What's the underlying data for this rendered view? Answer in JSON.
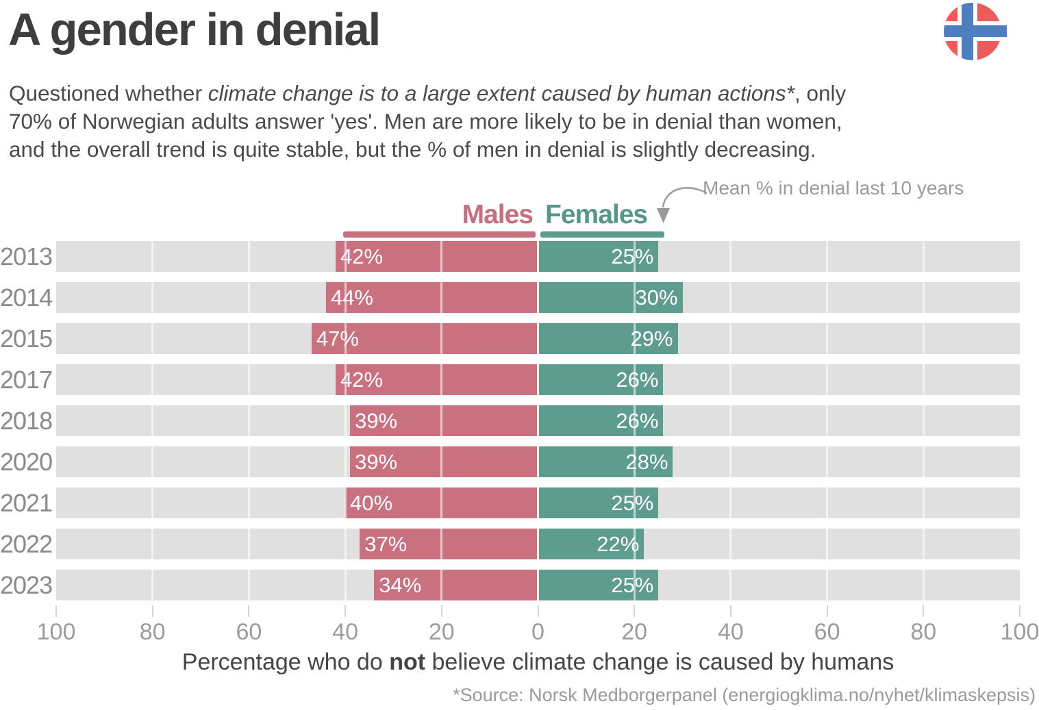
{
  "title": "A gender in denial",
  "flag": {
    "icon": "norway-flag-icon",
    "red": "#ee5b5b",
    "blue": "#4d7fc0",
    "white": "#ffffff"
  },
  "intro": {
    "part1": "Questioned whether ",
    "italic": "climate change is to a large extent caused by human actions*",
    "part2": ", only\n70% of Norwegian adults answer 'yes'. Men are more likely to be in denial than women,\nand the overall trend is quite stable, but the % of men in denial is slightly decreasing."
  },
  "annotation": {
    "text": "Mean % in denial last 10 years"
  },
  "legend": {
    "males": "Males",
    "females": "Females"
  },
  "colors": {
    "male_bar": "#ca7180",
    "female_bar": "#5f9c90",
    "track": "#e0e0e0",
    "legend_male_text": "#c96e7d",
    "legend_female_text": "#55978a",
    "gray_text": "#9a9a9a",
    "dark_text": "#3e3e3e"
  },
  "chart_data": {
    "type": "bar",
    "subtype": "diverging-horizontal",
    "categories": [
      "2013",
      "2014",
      "2015",
      "2017",
      "2018",
      "2020",
      "2021",
      "2022",
      "2023"
    ],
    "series": [
      {
        "name": "Males",
        "side": "left",
        "color": "#ca7180",
        "values": [
          42,
          44,
          47,
          42,
          39,
          39,
          40,
          37,
          34
        ],
        "mean": 40.4
      },
      {
        "name": "Females",
        "side": "right",
        "color": "#5f9c90",
        "values": [
          25,
          30,
          29,
          26,
          26,
          28,
          25,
          22,
          25
        ],
        "mean": 26.2
      }
    ],
    "value_suffix": "%",
    "tick_values": [
      -100,
      -80,
      -60,
      -40,
      -20,
      0,
      20,
      40,
      60,
      80,
      100
    ],
    "tick_labels": [
      "100",
      "80",
      "60",
      "40",
      "20",
      "0",
      "20",
      "40",
      "60",
      "80",
      "100"
    ],
    "xlim": [
      -100,
      100
    ],
    "grid": "white vertical lines every 20",
    "xlabel_part1": "Percentage who do ",
    "xlabel_bold": "not",
    "xlabel_part2": " believe climate change is caused by humans"
  },
  "source": "*Source: Norsk Medborgerpanel (energiogklima.no/nyhet/klimaskepsis)"
}
